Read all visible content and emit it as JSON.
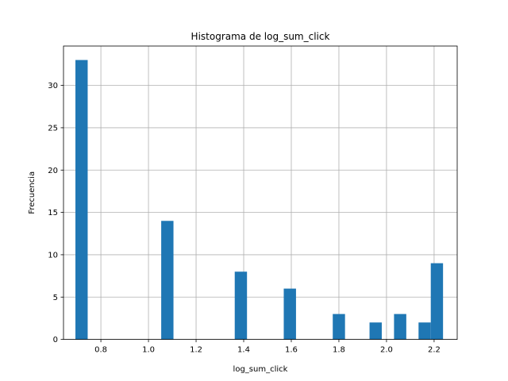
{
  "chart_data": {
    "type": "bar",
    "title": "Histograma de log_sum_click",
    "xlabel": "log_sum_click",
    "ylabel": "Frecuencia",
    "xlim": [
      0.643,
      2.297
    ],
    "ylim": [
      0,
      34.65
    ],
    "xticks": [
      0.8,
      1.0,
      1.2,
      1.4,
      1.6,
      1.8,
      2.0,
      2.2
    ],
    "xtick_labels": [
      "0.8",
      "1.0",
      "1.2",
      "1.4",
      "1.6",
      "1.8",
      "2.0",
      "2.2"
    ],
    "yticks": [
      0,
      5,
      10,
      15,
      20,
      25,
      30
    ],
    "ytick_labels": [
      "0",
      "5",
      "10",
      "15",
      "20",
      "25",
      "30"
    ],
    "grid": true,
    "bar_color": "#1f77b4",
    "bins": [
      {
        "x0": 0.6931,
        "x1": 0.7446,
        "value": 33
      },
      {
        "x0": 1.0535,
        "x1": 1.105,
        "value": 14
      },
      {
        "x0": 1.3624,
        "x1": 1.4139,
        "value": 8
      },
      {
        "x0": 1.5683,
        "x1": 1.6198,
        "value": 6
      },
      {
        "x0": 1.7742,
        "x1": 1.8257,
        "value": 3
      },
      {
        "x0": 1.9287,
        "x1": 1.9801,
        "value": 2
      },
      {
        "x0": 2.0316,
        "x1": 2.0831,
        "value": 3
      },
      {
        "x0": 2.1346,
        "x1": 2.186,
        "value": 2
      },
      {
        "x0": 2.186,
        "x1": 2.2375,
        "value": 9
      }
    ]
  }
}
